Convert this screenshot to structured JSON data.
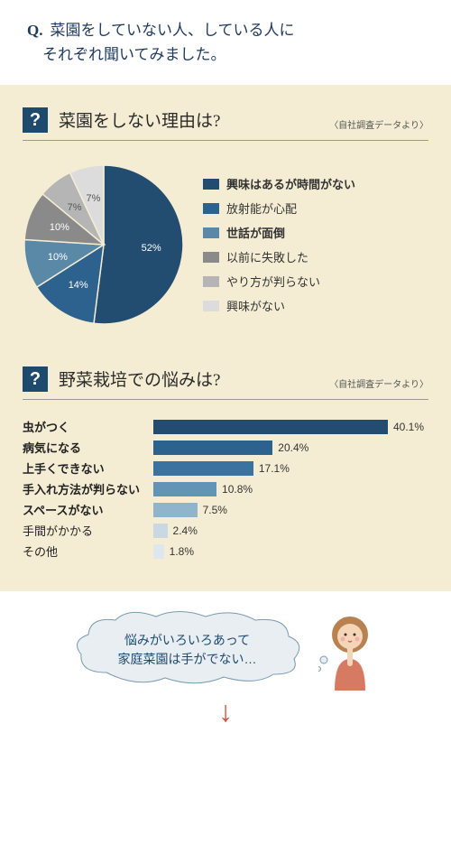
{
  "question": {
    "prefix": "Q.",
    "line1": "菜園をしていない人、している人に",
    "line2": "それぞれ聞いてみました。"
  },
  "source_note": "〈自社調査データより〉",
  "pie_section": {
    "title": "菜園をしない理由は?",
    "type": "pie",
    "slices": [
      {
        "label": "興味はあるが時間がない",
        "value": 52,
        "color": "#224d70",
        "bold": true,
        "text_color": "#ffffff"
      },
      {
        "label": "放射能が心配",
        "value": 14,
        "color": "#2d628e",
        "bold": false,
        "text_color": "#ffffff"
      },
      {
        "label": "世話が面倒",
        "value": 10,
        "color": "#5a89a8",
        "bold": true,
        "text_color": "#ffffff"
      },
      {
        "label": "以前に失敗した",
        "value": 10,
        "color": "#8a8a8a",
        "bold": false,
        "text_color": "#ffffff"
      },
      {
        "label": "やり方が判らない",
        "value": 7,
        "color": "#b5b5b5",
        "bold": false,
        "text_color": "#555555"
      },
      {
        "label": "興味がない",
        "value": 7,
        "color": "#dcdcdc",
        "bold": false,
        "text_color": "#555555"
      }
    ],
    "background": "#f5edd3"
  },
  "bar_section": {
    "title": "野菜栽培での悩みは?",
    "type": "bar",
    "max": 40.1,
    "bars": [
      {
        "label": "虫がつく",
        "value": 40.1,
        "color": "#224d70",
        "bold": true
      },
      {
        "label": "病気になる",
        "value": 20.4,
        "color": "#2d628e",
        "bold": true
      },
      {
        "label": "上手くできない",
        "value": 17.1,
        "color": "#3c72a0",
        "bold": true
      },
      {
        "label": "手入れ方法が判らない",
        "value": 10.8,
        "color": "#6494b5",
        "bold": true
      },
      {
        "label": "スペースがない",
        "value": 7.5,
        "color": "#8fb4cc",
        "bold": true
      },
      {
        "label": "手間がかかる",
        "value": 2.4,
        "color": "#c8d9e3",
        "bold": false
      },
      {
        "label": "その他",
        "value": 1.8,
        "color": "#dde7ed",
        "bold": false
      }
    ],
    "bar_track_width": 260
  },
  "bubble": {
    "line1": "悩みがいろいろあって",
    "line2": "家庭菜園は手がでない…"
  },
  "arrow": "↓",
  "colors": {
    "panel": "#f5edd3",
    "qmark": "#1e4a6d",
    "arrow": "#d4503a",
    "bubble_stroke": "#7a9bb0",
    "bubble_fill": "#e8eef2"
  }
}
